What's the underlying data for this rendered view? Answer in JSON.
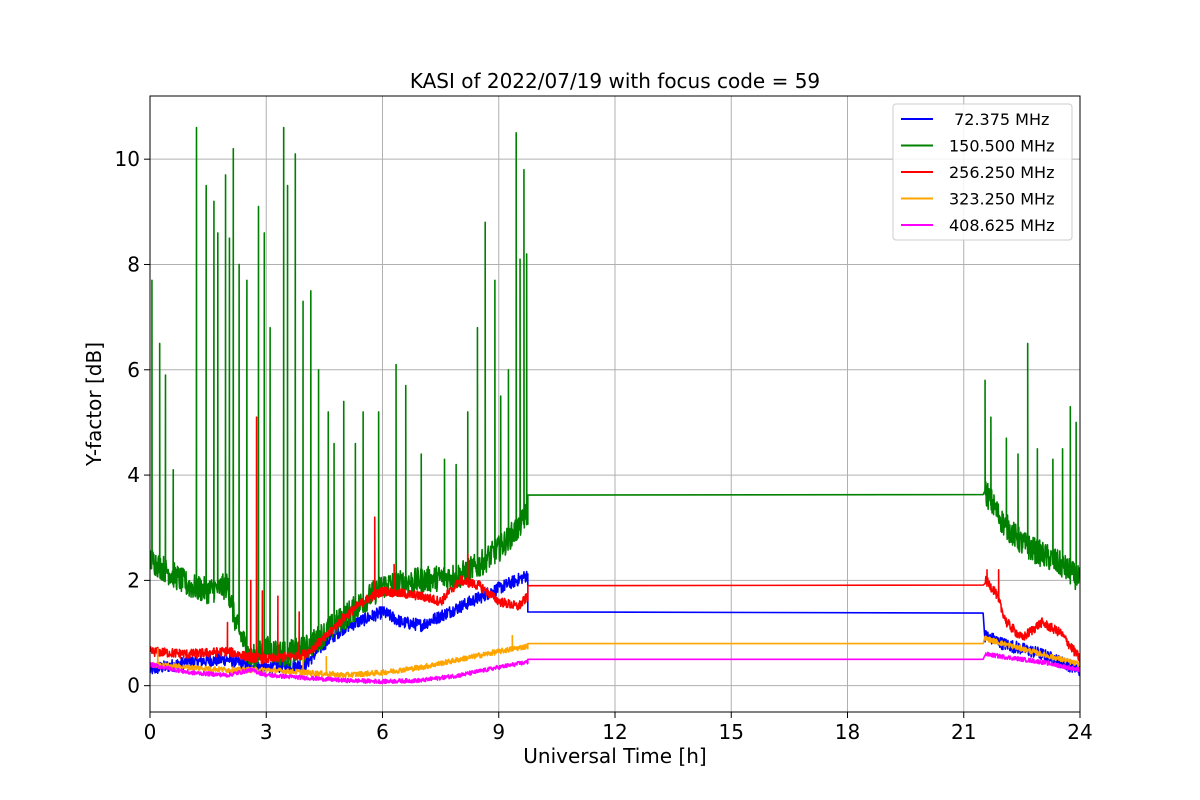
{
  "chart_data": {
    "type": "line",
    "title": "KASI of 2022/07/19 with focus code = 59",
    "xlabel": "Universal Time [h]",
    "ylabel": "Y-factor [dB]",
    "xlim": [
      0,
      24
    ],
    "ylim": [
      -0.5,
      11.2
    ],
    "xticks": [
      0,
      3,
      6,
      9,
      12,
      15,
      18,
      21,
      24
    ],
    "yticks": [
      0,
      2,
      4,
      6,
      8,
      10
    ],
    "grid": true,
    "legend_position": "top-right",
    "series": [
      {
        "name": " 72.375 MHz",
        "color": "#0000ff",
        "noise": 0.12,
        "baseline": [
          [
            0,
            0.3
          ],
          [
            1,
            0.45
          ],
          [
            2,
            0.5
          ],
          [
            2.5,
            0.4
          ],
          [
            3,
            0.35
          ],
          [
            4,
            0.4
          ],
          [
            4.5,
            0.8
          ],
          [
            5,
            1.1
          ],
          [
            6,
            1.4
          ],
          [
            6.5,
            1.2
          ],
          [
            7,
            1.15
          ],
          [
            8,
            1.5
          ],
          [
            9,
            1.85
          ],
          [
            9.75,
            2.1
          ]
        ],
        "spikes": [],
        "flat": [
          [
            9.75,
            1.4
          ],
          [
            21.5,
            1.38
          ]
        ],
        "baseline2": [
          [
            21.55,
            0.95
          ],
          [
            22,
            0.8
          ],
          [
            23,
            0.6
          ],
          [
            24,
            0.3
          ]
        ],
        "spikes2": []
      },
      {
        "name": "150.500 MHz",
        "color": "#008000",
        "noise": 0.25,
        "baseline": [
          [
            0,
            2.4
          ],
          [
            0.4,
            2.2
          ],
          [
            1,
            1.9
          ],
          [
            1.5,
            1.8
          ],
          [
            2,
            1.9
          ],
          [
            2.2,
            1.2
          ],
          [
            2.6,
            0.5
          ],
          [
            3,
            0.7
          ],
          [
            3.5,
            0.6
          ],
          [
            4,
            0.7
          ],
          [
            4.5,
            1.0
          ],
          [
            5,
            1.3
          ],
          [
            5.5,
            1.6
          ],
          [
            6,
            1.9
          ],
          [
            7,
            2.0
          ],
          [
            8,
            2.1
          ],
          [
            8.5,
            2.3
          ],
          [
            9,
            2.6
          ],
          [
            9.5,
            3.0
          ],
          [
            9.75,
            3.3
          ]
        ],
        "spikes": [
          [
            0.05,
            7.7
          ],
          [
            0.25,
            6.5
          ],
          [
            0.4,
            5.9
          ],
          [
            0.6,
            4.1
          ],
          [
            1.2,
            10.6
          ],
          [
            1.45,
            9.5
          ],
          [
            1.65,
            9.2
          ],
          [
            1.75,
            8.6
          ],
          [
            1.95,
            9.7
          ],
          [
            2.05,
            8.5
          ],
          [
            2.15,
            10.2
          ],
          [
            2.3,
            8.0
          ],
          [
            2.5,
            7.7
          ],
          [
            2.8,
            9.1
          ],
          [
            2.95,
            8.6
          ],
          [
            3.1,
            6.8
          ],
          [
            3.45,
            10.6
          ],
          [
            3.55,
            9.5
          ],
          [
            3.75,
            10.1
          ],
          [
            3.95,
            7.3
          ],
          [
            4.15,
            7.5
          ],
          [
            4.35,
            6.0
          ],
          [
            4.6,
            5.2
          ],
          [
            4.75,
            4.6
          ],
          [
            5.0,
            5.4
          ],
          [
            5.3,
            4.6
          ],
          [
            5.5,
            5.2
          ],
          [
            5.9,
            5.2
          ],
          [
            6.35,
            6.1
          ],
          [
            6.6,
            5.7
          ],
          [
            7.0,
            4.4
          ],
          [
            7.6,
            4.3
          ],
          [
            7.9,
            4.2
          ],
          [
            8.2,
            5.2
          ],
          [
            8.45,
            6.8
          ],
          [
            8.65,
            8.8
          ],
          [
            8.9,
            7.7
          ],
          [
            9.05,
            5.5
          ],
          [
            9.25,
            6.0
          ],
          [
            9.45,
            10.5
          ],
          [
            9.55,
            8.1
          ],
          [
            9.65,
            9.8
          ],
          [
            9.72,
            8.2
          ]
        ],
        "flat": [
          [
            9.75,
            3.62
          ],
          [
            21.5,
            3.63
          ]
        ],
        "baseline2": [
          [
            21.55,
            3.7
          ],
          [
            22,
            3.1
          ],
          [
            22.5,
            2.7
          ],
          [
            23,
            2.5
          ],
          [
            23.5,
            2.3
          ],
          [
            24,
            2.0
          ]
        ],
        "spikes2": [
          [
            21.55,
            5.8
          ],
          [
            21.7,
            5.1
          ],
          [
            22.1,
            4.7
          ],
          [
            22.4,
            4.4
          ],
          [
            22.65,
            6.5
          ],
          [
            22.9,
            4.5
          ],
          [
            23.3,
            4.3
          ],
          [
            23.55,
            4.5
          ],
          [
            23.75,
            5.3
          ],
          [
            23.9,
            5.0
          ]
        ]
      },
      {
        "name": "256.250 MHz",
        "color": "#ff0000",
        "noise": 0.09,
        "baseline": [
          [
            0,
            0.65
          ],
          [
            1,
            0.6
          ],
          [
            2,
            0.65
          ],
          [
            2.5,
            0.55
          ],
          [
            3,
            0.5
          ],
          [
            4,
            0.6
          ],
          [
            4.5,
            0.9
          ],
          [
            5,
            1.3
          ],
          [
            5.5,
            1.6
          ],
          [
            6,
            1.8
          ],
          [
            7,
            1.7
          ],
          [
            7.5,
            1.6
          ],
          [
            8,
            2.0
          ],
          [
            8.5,
            1.9
          ],
          [
            9,
            1.6
          ],
          [
            9.5,
            1.5
          ],
          [
            9.75,
            1.7
          ]
        ],
        "spikes": [
          [
            2.0,
            1.2
          ],
          [
            2.6,
            2.0
          ],
          [
            2.75,
            5.1
          ],
          [
            2.9,
            1.8
          ],
          [
            3.3,
            1.7
          ],
          [
            3.85,
            1.4
          ],
          [
            5.8,
            3.2
          ],
          [
            6.3,
            2.3
          ],
          [
            8.2,
            2.5
          ]
        ],
        "flat": [
          [
            9.75,
            1.9
          ],
          [
            21.5,
            1.91
          ]
        ],
        "baseline2": [
          [
            21.55,
            2.0
          ],
          [
            21.8,
            1.8
          ],
          [
            22.1,
            1.2
          ],
          [
            22.5,
            0.9
          ],
          [
            23,
            1.2
          ],
          [
            23.5,
            1.0
          ],
          [
            24,
            0.5
          ]
        ],
        "spikes2": [
          [
            21.6,
            2.2
          ],
          [
            21.9,
            2.2
          ]
        ]
      },
      {
        "name": "323.250 MHz",
        "color": "#ffa500",
        "noise": 0.05,
        "baseline": [
          [
            0,
            0.4
          ],
          [
            1,
            0.35
          ],
          [
            2,
            0.3
          ],
          [
            3,
            0.3
          ],
          [
            4,
            0.25
          ],
          [
            5,
            0.2
          ],
          [
            6,
            0.25
          ],
          [
            7,
            0.35
          ],
          [
            8,
            0.5
          ],
          [
            9,
            0.65
          ],
          [
            9.75,
            0.75
          ]
        ],
        "spikes": [
          [
            0.2,
            0.7
          ],
          [
            3.95,
            0.55
          ],
          [
            4.55,
            0.55
          ],
          [
            9.35,
            0.95
          ]
        ],
        "flat": [
          [
            9.75,
            0.8
          ],
          [
            21.5,
            0.8
          ]
        ],
        "baseline2": [
          [
            21.55,
            0.9
          ],
          [
            22,
            0.8
          ],
          [
            23,
            0.6
          ],
          [
            24,
            0.4
          ]
        ],
        "spikes2": []
      },
      {
        "name": "408.625 MHz",
        "color": "#ff00ff",
        "noise": 0.04,
        "baseline": [
          [
            0,
            0.4
          ],
          [
            1,
            0.25
          ],
          [
            2,
            0.2
          ],
          [
            2.6,
            0.3
          ],
          [
            3,
            0.2
          ],
          [
            4,
            0.15
          ],
          [
            5,
            0.1
          ],
          [
            6,
            0.08
          ],
          [
            7,
            0.1
          ],
          [
            8,
            0.2
          ],
          [
            9,
            0.35
          ],
          [
            9.75,
            0.45
          ]
        ],
        "spikes": [],
        "flat": [
          [
            9.75,
            0.5
          ],
          [
            21.5,
            0.5
          ]
        ],
        "baseline2": [
          [
            21.55,
            0.6
          ],
          [
            22,
            0.55
          ],
          [
            23,
            0.45
          ],
          [
            24,
            0.3
          ]
        ],
        "spikes2": []
      }
    ]
  }
}
